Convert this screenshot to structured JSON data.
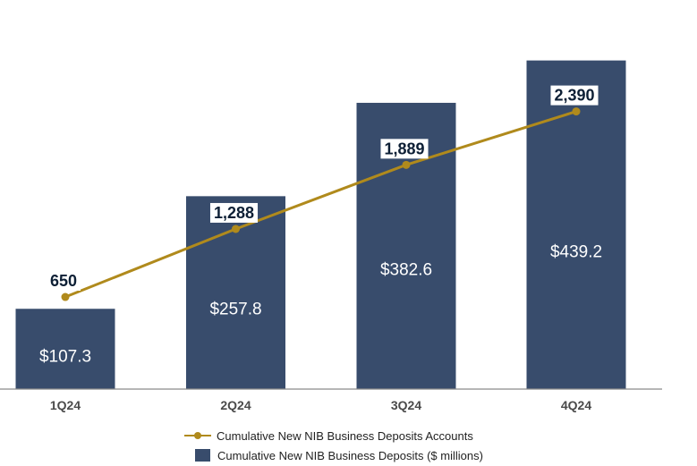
{
  "chart_data": {
    "type": "bar",
    "categories": [
      "1Q24",
      "2Q24",
      "3Q24",
      "4Q24"
    ],
    "series": [
      {
        "name": "Cumulative New NIB Business Deposits ($ millions)",
        "type": "bar",
        "values": [
          107.3,
          257.8,
          382.6,
          439.2
        ],
        "labels": [
          "$107.3",
          "$257.8",
          "$382.6",
          "$439.2"
        ],
        "color": "#384c6c"
      },
      {
        "name": "Cumulative New NIB Business Deposits Accounts",
        "type": "line",
        "values": [
          650,
          1288,
          1889,
          2390
        ],
        "labels": [
          "650",
          "1,288",
          "1,889",
          "2,390"
        ],
        "color": "#b08a1c"
      }
    ],
    "grid": false,
    "legend_position": "bottom"
  }
}
